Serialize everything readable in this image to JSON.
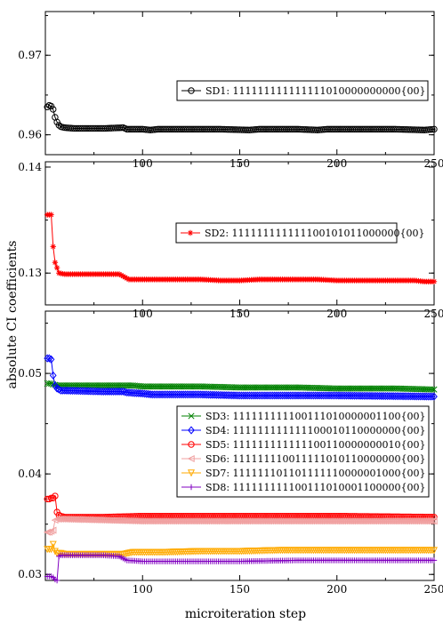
{
  "axes": {
    "xlabel": "microiteration step",
    "ylabel": "absolute CI coefficients"
  },
  "chart_data": [
    {
      "type": "line",
      "xlim": [
        50,
        250
      ],
      "ylim": [
        0.9575,
        0.9755
      ],
      "xticks": [
        100,
        150,
        200,
        250
      ],
      "yticks": [
        0.96,
        0.97
      ],
      "ytick_labels": [
        "0.96",
        "0.97"
      ],
      "legend_position": "center-right",
      "series": [
        {
          "name": "SD1: 111111111111111010000000000{00}",
          "color": "#000000",
          "marker": "circle",
          "points": [
            [
              51,
              0.9635
            ],
            [
              52,
              0.9637
            ],
            [
              53,
              0.9636
            ],
            [
              54,
              0.9632
            ],
            [
              55,
              0.9622
            ],
            [
              56,
              0.9616
            ],
            [
              57,
              0.9612
            ],
            [
              58,
              0.961
            ],
            [
              60,
              0.9609
            ],
            [
              65,
              0.9608
            ],
            [
              70,
              0.9608
            ],
            [
              80,
              0.9608
            ],
            [
              90,
              0.9609
            ],
            [
              92,
              0.9607
            ],
            [
              100,
              0.9607
            ],
            [
              104,
              0.9606
            ],
            [
              108,
              0.9607
            ],
            [
              120,
              0.9607
            ],
            [
              140,
              0.9607
            ],
            [
              155,
              0.9606
            ],
            [
              160,
              0.9607
            ],
            [
              180,
              0.9607
            ],
            [
              190,
              0.9606
            ],
            [
              195,
              0.9607
            ],
            [
              210,
              0.9607
            ],
            [
              230,
              0.9607
            ],
            [
              245,
              0.9606
            ],
            [
              250,
              0.9607
            ]
          ]
        }
      ]
    },
    {
      "type": "line",
      "xlim": [
        50,
        250
      ],
      "ylim": [
        0.127,
        0.1405
      ],
      "xticks": [
        100,
        150,
        200,
        250
      ],
      "yticks": [
        0.13,
        0.14
      ],
      "ytick_labels": [
        "0.13",
        "0.14"
      ],
      "legend_position": "center-right",
      "series": [
        {
          "name": "SD2: 111111111111100101011000000{00}",
          "color": "#ff0000",
          "marker": "star",
          "points": [
            [
              51,
              0.1355
            ],
            [
              52,
              0.1355
            ],
            [
              53,
              0.1355
            ],
            [
              54,
              0.1325
            ],
            [
              55,
              0.131
            ],
            [
              56,
              0.1305
            ],
            [
              57,
              0.13
            ],
            [
              60,
              0.1299
            ],
            [
              70,
              0.1299
            ],
            [
              80,
              0.1299
            ],
            [
              88,
              0.1299
            ],
            [
              90,
              0.1297
            ],
            [
              93,
              0.1294
            ],
            [
              100,
              0.1294
            ],
            [
              110,
              0.1294
            ],
            [
              130,
              0.1294
            ],
            [
              140,
              0.1293
            ],
            [
              150,
              0.1293
            ],
            [
              160,
              0.1294
            ],
            [
              190,
              0.1294
            ],
            [
              200,
              0.1293
            ],
            [
              220,
              0.1293
            ],
            [
              240,
              0.1293
            ],
            [
              245,
              0.1292
            ],
            [
              250,
              0.1292
            ]
          ]
        }
      ]
    },
    {
      "type": "line",
      "xlim": [
        50,
        250
      ],
      "ylim": [
        0.0294,
        0.0562
      ],
      "xticks": [
        100,
        150,
        200,
        250
      ],
      "xtick_labels": [
        "100",
        "150",
        "200",
        "250"
      ],
      "yticks": [
        0.03,
        0.04,
        0.05
      ],
      "ytick_labels": [
        "0.03",
        "0.04",
        "0.05"
      ],
      "legend_position": "center-right",
      "series": [
        {
          "name": "SD3: 111111111100111010000001100{00}",
          "color": "#008000",
          "marker": "x",
          "points": [
            [
              51,
              0.049
            ],
            [
              52,
              0.049
            ],
            [
              53,
              0.049
            ],
            [
              54,
              0.0489
            ],
            [
              56,
              0.0488
            ],
            [
              60,
              0.0488
            ],
            [
              80,
              0.0488
            ],
            [
              95,
              0.0488
            ],
            [
              100,
              0.0487
            ],
            [
              130,
              0.0487
            ],
            [
              150,
              0.0486
            ],
            [
              180,
              0.0486
            ],
            [
              200,
              0.0485
            ],
            [
              230,
              0.0485
            ],
            [
              250,
              0.0484
            ]
          ]
        },
        {
          "name": "SD4: 111111111111100010110000000{00}",
          "color": "#0000ff",
          "marker": "diamond",
          "points": [
            [
              51,
              0.0515
            ],
            [
              52,
              0.0515
            ],
            [
              53,
              0.0514
            ],
            [
              54,
              0.0498
            ],
            [
              55,
              0.0488
            ],
            [
              56,
              0.0485
            ],
            [
              57,
              0.0484
            ],
            [
              58,
              0.0483
            ],
            [
              60,
              0.0483
            ],
            [
              80,
              0.0482
            ],
            [
              90,
              0.0482
            ],
            [
              92,
              0.0481
            ],
            [
              100,
              0.048
            ],
            [
              105,
              0.0479
            ],
            [
              130,
              0.0479
            ],
            [
              150,
              0.0478
            ],
            [
              200,
              0.0478
            ],
            [
              250,
              0.0477
            ]
          ]
        },
        {
          "name": "SD5: 111111111111100110000000010{00}",
          "color": "#ff0000",
          "marker": "circle",
          "points": [
            [
              51,
              0.0375
            ],
            [
              52,
              0.0375
            ],
            [
              53,
              0.0376
            ],
            [
              54,
              0.0376
            ],
            [
              55,
              0.0378
            ],
            [
              56,
              0.0362
            ],
            [
              57,
              0.0359
            ],
            [
              58,
              0.0358
            ],
            [
              60,
              0.0357
            ],
            [
              80,
              0.0357
            ],
            [
              100,
              0.0358
            ],
            [
              150,
              0.0358
            ],
            [
              200,
              0.0358
            ],
            [
              250,
              0.0357
            ]
          ]
        },
        {
          "name": "SD6: 111111110011111010110000000{00}",
          "color": "#f0a0a0",
          "marker": "triangle-left",
          "points": [
            [
              51,
              0.0342
            ],
            [
              52,
              0.0342
            ],
            [
              53,
              0.0343
            ],
            [
              54,
              0.0344
            ],
            [
              55,
              0.0354
            ],
            [
              56,
              0.0355
            ],
            [
              58,
              0.0355
            ],
            [
              60,
              0.0355
            ],
            [
              80,
              0.0354
            ],
            [
              100,
              0.0353
            ],
            [
              150,
              0.0353
            ],
            [
              200,
              0.0353
            ],
            [
              250,
              0.0353
            ]
          ]
        },
        {
          "name": "SD7: 111111101101111110000001000{00}",
          "color": "#ffaa00",
          "marker": "triangle-down",
          "points": [
            [
              51,
              0.0325
            ],
            [
              52,
              0.0325
            ],
            [
              53,
              0.0325
            ],
            [
              54,
              0.033
            ],
            [
              55,
              0.0323
            ],
            [
              56,
              0.0321
            ],
            [
              58,
              0.0321
            ],
            [
              60,
              0.032
            ],
            [
              80,
              0.032
            ],
            [
              90,
              0.032
            ],
            [
              95,
              0.0322
            ],
            [
              110,
              0.0322
            ],
            [
              130,
              0.0323
            ],
            [
              150,
              0.0323
            ],
            [
              170,
              0.0324
            ],
            [
              200,
              0.0324
            ],
            [
              250,
              0.0324
            ]
          ]
        },
        {
          "name": "SD8: 111111111100111010001100000{00}",
          "color": "#8000c0",
          "marker": "plus",
          "points": [
            [
              51,
              0.0298
            ],
            [
              52,
              0.0298
            ],
            [
              53,
              0.0298
            ],
            [
              54,
              0.0297
            ],
            [
              55,
              0.0295
            ],
            [
              56,
              0.0294
            ],
            [
              57,
              0.0318
            ],
            [
              58,
              0.0319
            ],
            [
              60,
              0.0319
            ],
            [
              80,
              0.0319
            ],
            [
              88,
              0.0318
            ],
            [
              92,
              0.0314
            ],
            [
              100,
              0.0313
            ],
            [
              130,
              0.0313
            ],
            [
              150,
              0.0313
            ],
            [
              180,
              0.0314
            ],
            [
              200,
              0.0314
            ],
            [
              250,
              0.0314
            ]
          ]
        }
      ]
    }
  ]
}
